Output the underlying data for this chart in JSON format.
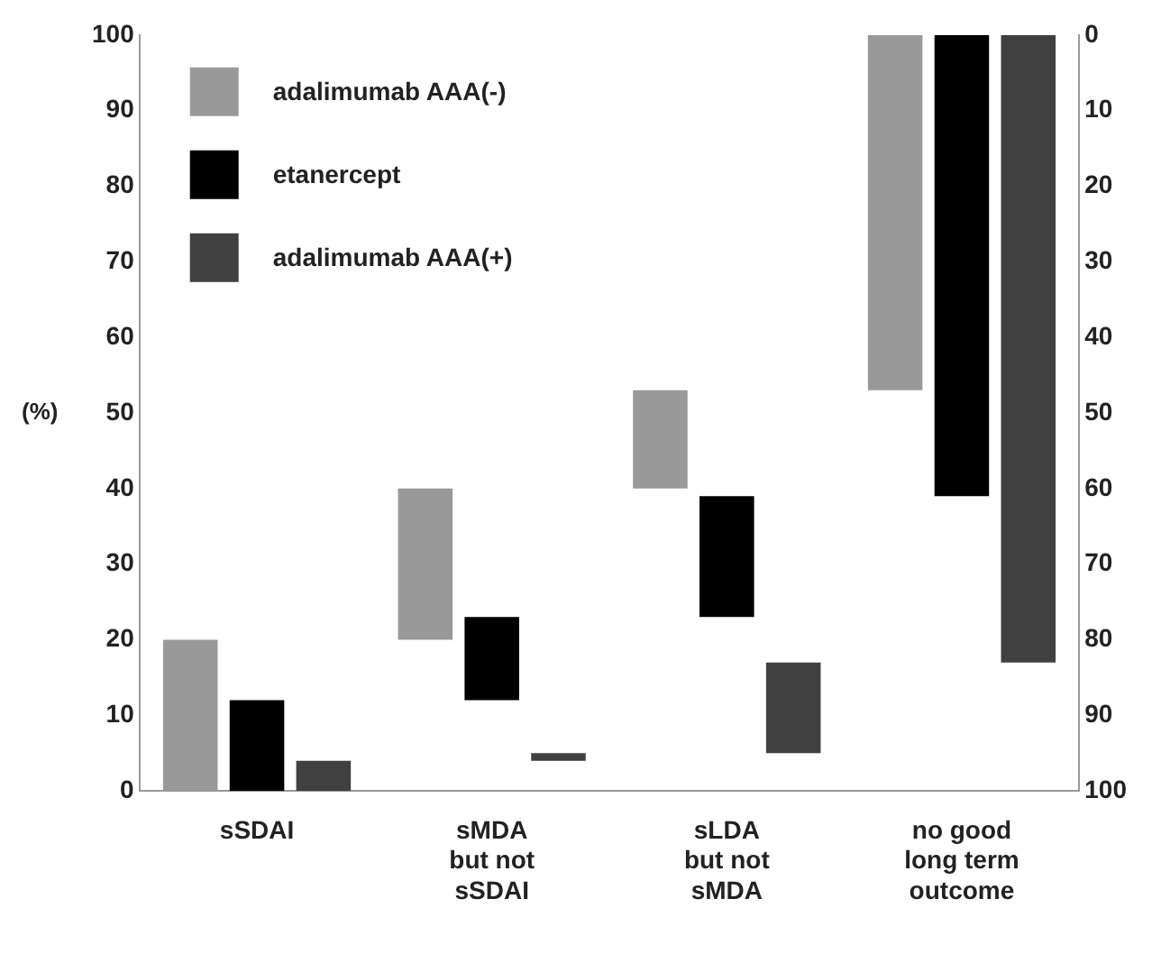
{
  "chart_data": {
    "type": "bar",
    "ylabel": "(%)",
    "categories": [
      "sSDAI",
      "sMDA\nbut not\nsSDAI",
      "sLDA\nbut not\nsMDA",
      "no good\nlong term\noutcome"
    ],
    "series": [
      {
        "name": "adalimumab AAA(-)",
        "color": "#999999",
        "values": [
          20,
          20,
          13,
          47
        ],
        "base": [
          0,
          20,
          40,
          53
        ]
      },
      {
        "name": "etanercept",
        "color": "#000000",
        "values": [
          12,
          11,
          16,
          61
        ],
        "base": [
          0,
          12,
          23,
          39
        ]
      },
      {
        "name": "adalimumab AAA(+)",
        "color": "#404040",
        "values": [
          4,
          1,
          12,
          83
        ],
        "base": [
          0,
          4,
          5,
          17
        ]
      }
    ],
    "ylim": [
      0,
      100
    ],
    "yticks": [
      0,
      10,
      20,
      30,
      40,
      50,
      60,
      70,
      80,
      90,
      100
    ],
    "y2lim": [
      100,
      0
    ],
    "y2ticks": [
      0,
      10,
      20,
      30,
      40,
      50,
      60,
      70,
      80,
      90,
      100
    ],
    "grid": false,
    "legend": "top left"
  }
}
